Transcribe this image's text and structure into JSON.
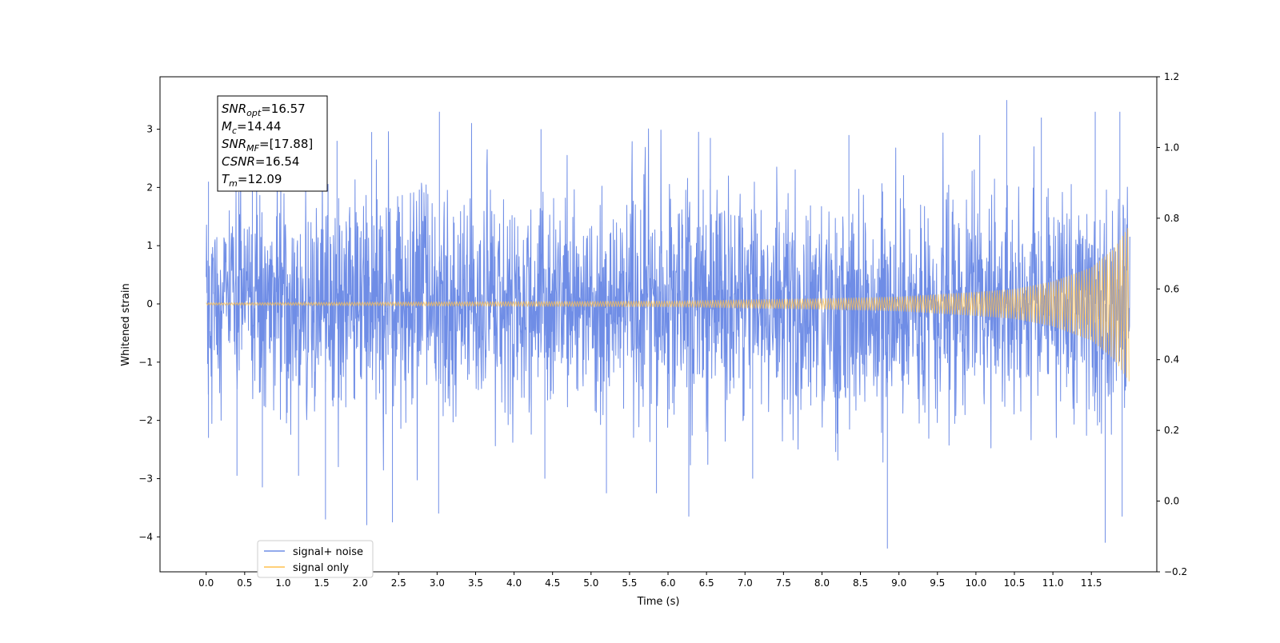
{
  "chart_data": {
    "type": "line",
    "xlabel": "Time (s)",
    "ylabel": "Whitened strain",
    "xlim": [
      -0.6,
      12.35
    ],
    "ylim": [
      -4.6,
      3.9
    ],
    "ylim_right": [
      -0.2,
      1.2
    ],
    "x_ticks": [
      "0.0",
      "0.5",
      "1.0",
      "1.5",
      "2.0",
      "2.5",
      "3.0",
      "3.5",
      "4.0",
      "4.5",
      "5.0",
      "5.5",
      "6.0",
      "6.5",
      "7.0",
      "7.5",
      "8.0",
      "8.5",
      "9.0",
      "9.5",
      "10.0",
      "10.5",
      "11.0",
      "11.5"
    ],
    "y_ticks": [
      "3",
      "2",
      "1",
      "0",
      "−1",
      "−2",
      "−3",
      "−4"
    ],
    "y_ticks_right": [
      "1.2",
      "1.0",
      "0.8",
      "0.6",
      "0.4",
      "0.2",
      "0.0",
      "−0.2"
    ],
    "grid": false,
    "legend_position": "lower-left",
    "series": [
      {
        "name": "signal+ noise",
        "color": "#6f8de6",
        "x_range": [
          0.0,
          12.0
        ],
        "noise_sigma": 0.95,
        "peak_samples": [
          {
            "x": 0.03,
            "y": 2.1
          },
          {
            "x": 0.03,
            "y": -2.3
          },
          {
            "x": 0.4,
            "y": -2.95
          },
          {
            "x": 0.6,
            "y": 2.8
          },
          {
            "x": 0.73,
            "y": -3.15
          },
          {
            "x": 1.2,
            "y": -2.95
          },
          {
            "x": 1.55,
            "y": -3.7
          },
          {
            "x": 1.7,
            "y": 2.8
          },
          {
            "x": 2.15,
            "y": 2.95
          },
          {
            "x": 2.42,
            "y": -3.75
          },
          {
            "x": 3.03,
            "y": 3.3
          },
          {
            "x": 3.02,
            "y": -3.6
          },
          {
            "x": 4.35,
            "y": 3.0
          },
          {
            "x": 4.4,
            "y": -3.0
          },
          {
            "x": 5.2,
            "y": -3.25
          },
          {
            "x": 5.85,
            "y": -3.25
          },
          {
            "x": 6.27,
            "y": -3.65
          },
          {
            "x": 6.55,
            "y": 2.85
          },
          {
            "x": 7.1,
            "y": -3.0
          },
          {
            "x": 8.35,
            "y": 2.9
          },
          {
            "x": 8.85,
            "y": -4.2
          },
          {
            "x": 10.05,
            "y": 2.9
          },
          {
            "x": 10.4,
            "y": 3.5
          },
          {
            "x": 10.85,
            "y": 3.2
          },
          {
            "x": 11.55,
            "y": 3.3
          },
          {
            "x": 11.68,
            "y": -4.1
          },
          {
            "x": 11.87,
            "y": 3.3
          },
          {
            "x": 11.9,
            "y": -3.65
          }
        ]
      },
      {
        "name": "signal only",
        "color": "#ffc04d",
        "x_range": [
          0.0,
          12.0
        ],
        "envelope_samples": [
          {
            "x": 0.0,
            "y": 0.02
          },
          {
            "x": 2.0,
            "y": 0.03
          },
          {
            "x": 4.0,
            "y": 0.04
          },
          {
            "x": 6.0,
            "y": 0.05
          },
          {
            "x": 8.0,
            "y": 0.09
          },
          {
            "x": 9.0,
            "y": 0.12
          },
          {
            "x": 10.0,
            "y": 0.2
          },
          {
            "x": 10.5,
            "y": 0.25
          },
          {
            "x": 11.0,
            "y": 0.38
          },
          {
            "x": 11.5,
            "y": 0.62
          },
          {
            "x": 11.8,
            "y": 0.95
          },
          {
            "x": 12.0,
            "y": 1.35
          }
        ]
      }
    ],
    "annotation": {
      "lines": [
        {
          "sym": "SNR",
          "sub": "opt",
          "value": "=16.57"
        },
        {
          "sym": "M",
          "sub": "c",
          "value": "=14.44"
        },
        {
          "sym": "SNR",
          "sub": "MF",
          "value": "=[17.88]"
        },
        {
          "sym": "CSNR",
          "sub": "",
          "value": "=16.54"
        },
        {
          "sym": "T",
          "sub": "m",
          "value": "=12.09"
        }
      ]
    }
  }
}
